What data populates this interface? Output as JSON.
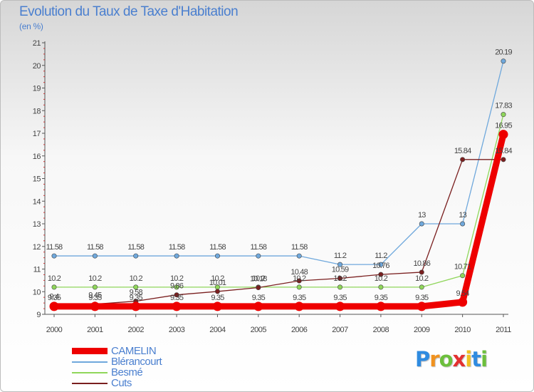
{
  "header": {
    "title": "Evolution du Taux de Taxe d'Habitation",
    "subtitle": "(en %)"
  },
  "brand": {
    "letters": [
      "P",
      "r",
      "o",
      "x",
      "i",
      "t",
      "i"
    ],
    "colors": [
      "#2f8be0",
      "#f0921f",
      "#6cbf3c",
      "#e3302f",
      "#f0c020",
      "#2f8be0",
      "#6cbf3c"
    ]
  },
  "chart_data": {
    "type": "line",
    "x": [
      "2000",
      "2001",
      "2002",
      "2003",
      "2004",
      "2005",
      "2006",
      "2007",
      "2008",
      "2009",
      "2010",
      "2011"
    ],
    "ylim": [
      9,
      21
    ],
    "yticks": [
      "9",
      "10",
      "11",
      "12",
      "13",
      "14",
      "15",
      "16",
      "17",
      "18",
      "19",
      "20",
      "21"
    ],
    "grid": false,
    "legend_position": "bottom-left",
    "series": [
      {
        "name": "CAMELIN",
        "color": "#ee0000",
        "values": [
          9.35,
          9.35,
          9.35,
          9.35,
          9.35,
          9.35,
          9.35,
          9.35,
          9.35,
          9.35,
          9.54,
          16.95
        ],
        "labels": [
          "9.35",
          "9.35",
          "9.35",
          "9.35",
          "9.35",
          "9.35",
          "9.35",
          "9.35",
          "9.35",
          "9.35",
          "9.54",
          "16.95"
        ]
      },
      {
        "name": "Blérancourt",
        "color": "#6fa8dc",
        "values": [
          11.58,
          11.58,
          11.58,
          11.58,
          11.58,
          11.58,
          11.58,
          11.2,
          11.2,
          13,
          13,
          20.19
        ],
        "labels": [
          "11.58",
          "11.58",
          "11.58",
          "11.58",
          "11.58",
          "11.58",
          "11.58",
          "11.2",
          "11.2",
          "13",
          "13",
          "20.19"
        ]
      },
      {
        "name": "Besmé",
        "color": "#8fd65a",
        "values": [
          10.2,
          10.2,
          10.2,
          10.2,
          10.2,
          10.2,
          10.2,
          10.2,
          10.2,
          10.2,
          10.71,
          17.83
        ],
        "labels": [
          "10.2",
          "10.2",
          "10.2",
          "10.2",
          "10.2",
          "10.2",
          "10.2",
          "10.2",
          "10.2",
          "10.2",
          "10.71",
          "17.83"
        ]
      },
      {
        "name": "Cuts",
        "color": "#7a1f1f",
        "values": [
          9.4,
          9.45,
          9.58,
          9.86,
          10.01,
          10.18,
          10.48,
          10.59,
          10.76,
          10.86,
          15.84,
          15.84
        ],
        "labels": [
          "9.4",
          "9.45",
          "9.58",
          "9.86",
          "10.01",
          "10.18",
          "10.48",
          "10.59",
          "10.76",
          "10.86",
          "15.84",
          "15.84"
        ]
      }
    ]
  }
}
